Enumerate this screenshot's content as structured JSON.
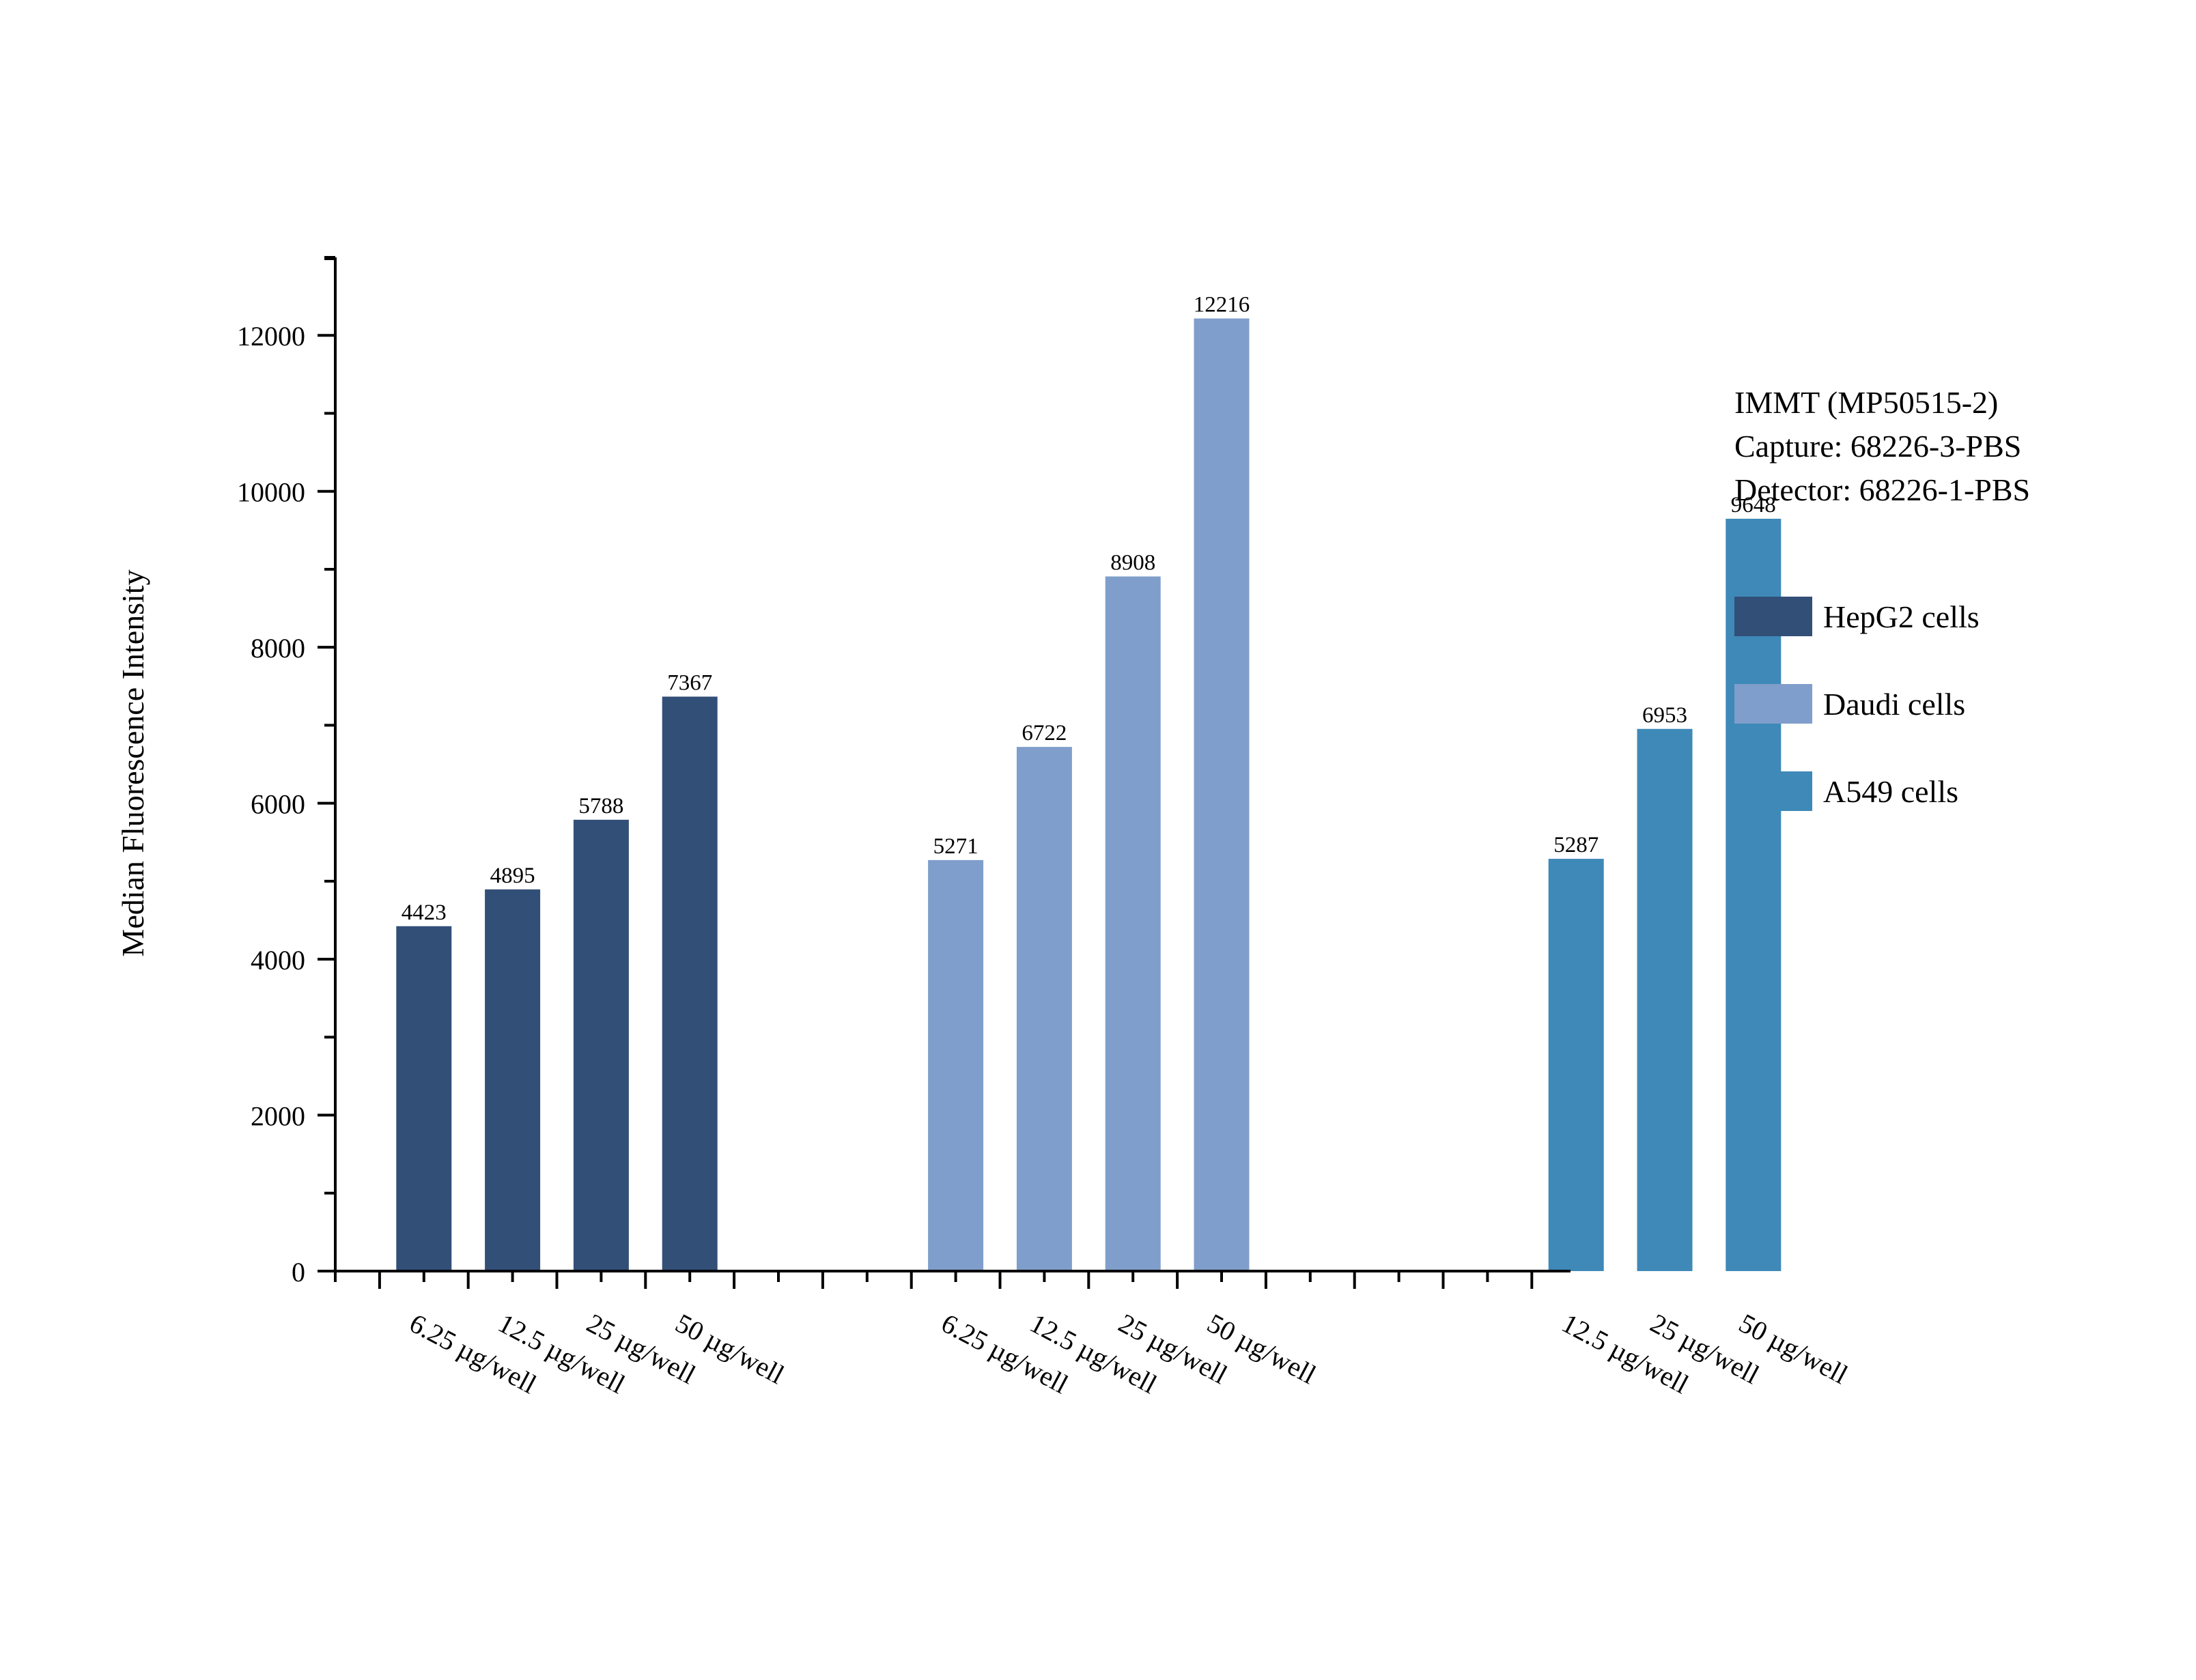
{
  "chart_data": {
    "type": "bar",
    "ylabel": "Median Fluorescence Intensity",
    "ylim": [
      0,
      13000
    ],
    "yticks": [
      0,
      2000,
      4000,
      6000,
      8000,
      10000,
      12000
    ],
    "legend_position": "right",
    "annotation": [
      "IMMT (MP50515-2)",
      "Capture: 68226-3-PBS",
      "Detector: 68226-1-PBS"
    ],
    "groups": [
      {
        "name": "HepG2 cells",
        "color": "#324f78",
        "categories": [
          "6.25 µg/well",
          "12.5 µg/well",
          "25 µg/well",
          "50 µg/well"
        ],
        "values": [
          4423,
          4895,
          5788,
          7367
        ]
      },
      {
        "name": "Daudi cells",
        "color": "#7f9ecb",
        "categories": [
          "6.25 µg/well",
          "12.5 µg/well",
          "25 µg/well",
          "50 µg/well"
        ],
        "values": [
          5271,
          6722,
          8908,
          12216
        ]
      },
      {
        "name": "A549 cells",
        "color": "#3e89b8",
        "categories": [
          "12.5 µg/well",
          "25 µg/well",
          "50 µg/well"
        ],
        "values": [
          5287,
          6953,
          9648
        ]
      }
    ]
  }
}
